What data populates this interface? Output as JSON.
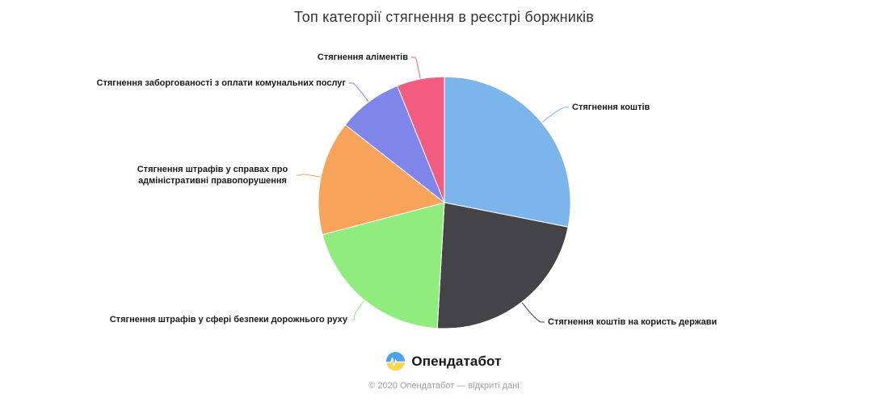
{
  "chart_data": {
    "type": "pie",
    "title": "Топ категорії стягнення в реєстрі боржників",
    "legend": "none",
    "start_angle_deg": 0,
    "direction": "clockwise",
    "labels_outside_with_connectors": true,
    "background": "#ffffff",
    "points": [
      {
        "label": "Стягнення коштів",
        "pct": 28.1,
        "color": "#7cb5ec"
      },
      {
        "label": "Стягнення коштів на користь держави",
        "pct": 22.8,
        "color": "#434348"
      },
      {
        "label": "Стягнення штрафів у сфері безпеки дорожнього руху",
        "pct": 20.0,
        "color": "#90ed7d"
      },
      {
        "label": "Стягнення штрафів у справах про адміністративні правопорушення",
        "pct": 14.7,
        "color": "#f7a35c"
      },
      {
        "label": "Стягнення заборгованості з оплати комунальних послуг",
        "pct": 8.3,
        "color": "#8085e9"
      },
      {
        "label": "Стягнення аліментів",
        "pct": 6.1,
        "color": "#f15c80"
      }
    ]
  },
  "footer": {
    "brand": "Опендатабот",
    "copyright": "© 2020 Опендатабот — відкриті дані",
    "logo_colors": {
      "top": "#4da3e8",
      "bottom": "#ffd54a",
      "pulse": "#ffffff"
    }
  }
}
